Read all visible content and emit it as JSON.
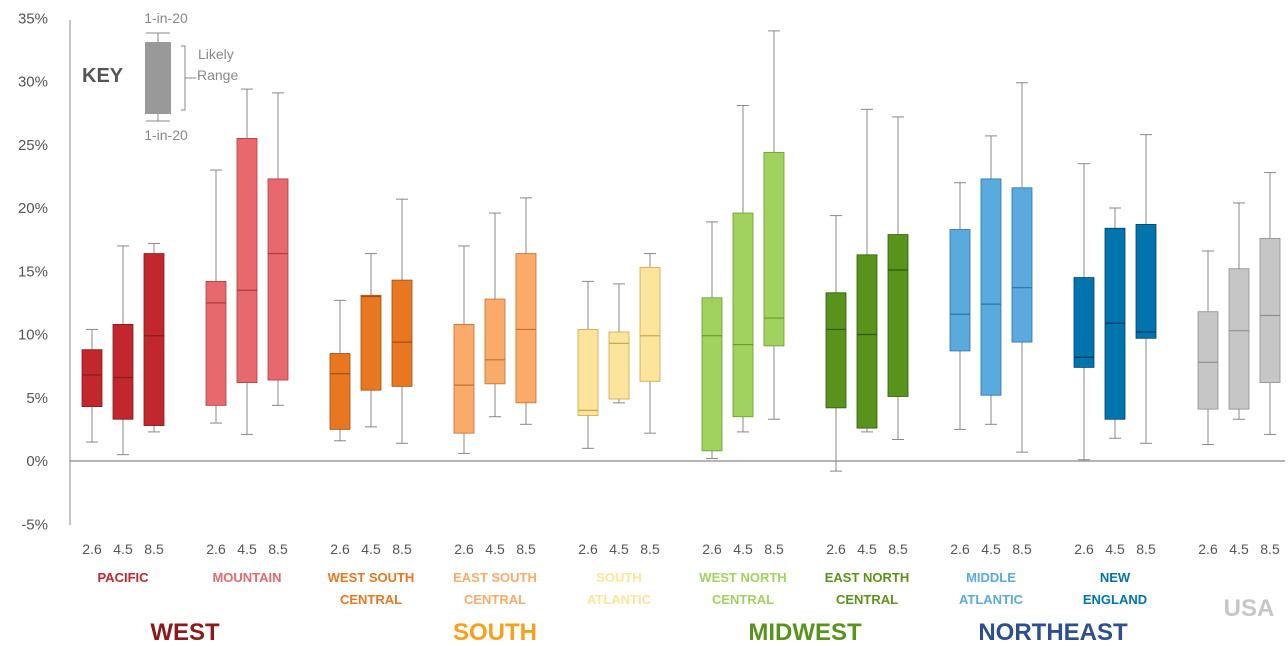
{
  "chart_data": {
    "type": "box",
    "ylim": [
      -5,
      35
    ],
    "yticks": [
      -5,
      0,
      5,
      10,
      15,
      20,
      25,
      30,
      35
    ],
    "ytick_labels": [
      "-5%",
      "0%",
      "5%",
      "10%",
      "15%",
      "20%",
      "25%",
      "30%",
      "35%"
    ],
    "scenarios": [
      "2.6",
      "4.5",
      "8.5"
    ],
    "key": {
      "title": "KEY",
      "upper_label": "1-in-20",
      "lower_label": "1-in-20",
      "range_label_line1": "Likely",
      "range_label_line2": "Range"
    },
    "groups": [
      {
        "name_lines": [
          "PACIFIC"
        ],
        "color": "#c1272d",
        "median_color": "#8a1a1f",
        "boxes": [
          {
            "scenario": "2.6",
            "low": 1.5,
            "q1": 4.3,
            "median": 6.8,
            "q3": 8.8,
            "high": 10.4
          },
          {
            "scenario": "4.5",
            "low": 0.5,
            "q1": 3.3,
            "median": 6.6,
            "q3": 10.8,
            "high": 17.0
          },
          {
            "scenario": "8.5",
            "low": 2.3,
            "q1": 2.8,
            "median": 9.9,
            "q3": 16.4,
            "high": 17.2
          }
        ]
      },
      {
        "name_lines": [
          "MOUNTAIN"
        ],
        "color": "#e8696d",
        "median_color": "#b03a3f",
        "boxes": [
          {
            "scenario": "2.6",
            "low": 3.0,
            "q1": 4.4,
            "median": 12.5,
            "q3": 14.2,
            "high": 23.0
          },
          {
            "scenario": "4.5",
            "low": 2.1,
            "q1": 6.2,
            "median": 13.5,
            "q3": 25.5,
            "high": 29.4
          },
          {
            "scenario": "8.5",
            "low": 4.4,
            "q1": 6.4,
            "median": 16.4,
            "q3": 22.3,
            "high": 29.1
          }
        ]
      },
      {
        "name_lines": [
          "WEST SOUTH",
          "CENTRAL"
        ],
        "color": "#e87722",
        "median_color": "#a34f12",
        "boxes": [
          {
            "scenario": "2.6",
            "low": 1.6,
            "q1": 2.5,
            "median": 6.9,
            "q3": 8.5,
            "high": 12.7
          },
          {
            "scenario": "4.5",
            "low": 2.7,
            "q1": 5.6,
            "median": 13.0,
            "q3": 13.1,
            "high": 16.4
          },
          {
            "scenario": "8.5",
            "low": 1.4,
            "q1": 5.9,
            "median": 9.4,
            "q3": 14.3,
            "high": 20.7
          }
        ]
      },
      {
        "name_lines": [
          "EAST SOUTH",
          "CENTRAL"
        ],
        "color": "#fbaa6a",
        "median_color": "#c0702f",
        "boxes": [
          {
            "scenario": "2.6",
            "low": 0.6,
            "q1": 2.2,
            "median": 6.0,
            "q3": 10.8,
            "high": 17.0
          },
          {
            "scenario": "4.5",
            "low": 3.5,
            "q1": 6.1,
            "median": 8.0,
            "q3": 12.8,
            "high": 19.6
          },
          {
            "scenario": "8.5",
            "low": 2.9,
            "q1": 4.6,
            "median": 10.4,
            "q3": 16.4,
            "high": 20.8
          }
        ]
      },
      {
        "name_lines": [
          "SOUTH",
          "ATLANTIC"
        ],
        "color": "#fde49c",
        "median_color": "#c9a94a",
        "boxes": [
          {
            "scenario": "2.6",
            "low": 1.0,
            "q1": 3.6,
            "median": 4.0,
            "q3": 10.4,
            "high": 14.2
          },
          {
            "scenario": "4.5",
            "low": 4.6,
            "q1": 4.9,
            "median": 9.3,
            "q3": 10.2,
            "high": 14.0
          },
          {
            "scenario": "8.5",
            "low": 2.2,
            "q1": 6.3,
            "median": 9.9,
            "q3": 15.3,
            "high": 16.4
          }
        ]
      },
      {
        "name_lines": [
          "WEST NORTH",
          "CENTRAL"
        ],
        "color": "#a2d25e",
        "median_color": "#6a9a2c",
        "boxes": [
          {
            "scenario": "2.6",
            "low": 0.2,
            "q1": 0.8,
            "median": 9.9,
            "q3": 12.9,
            "high": 18.9
          },
          {
            "scenario": "4.5",
            "low": 2.3,
            "q1": 3.5,
            "median": 9.2,
            "q3": 19.6,
            "high": 28.1
          },
          {
            "scenario": "8.5",
            "low": 3.3,
            "q1": 9.1,
            "median": 11.3,
            "q3": 24.4,
            "high": 34.0
          }
        ]
      },
      {
        "name_lines": [
          "EAST NORTH",
          "CENTRAL"
        ],
        "color": "#5a931c",
        "median_color": "#2f5a08",
        "boxes": [
          {
            "scenario": "2.6",
            "low": -0.8,
            "q1": 4.2,
            "median": 10.4,
            "q3": 13.3,
            "high": 19.4
          },
          {
            "scenario": "4.5",
            "low": 2.3,
            "q1": 2.6,
            "median": 10.0,
            "q3": 16.3,
            "high": 27.8
          },
          {
            "scenario": "8.5",
            "low": 1.7,
            "q1": 5.1,
            "median": 15.1,
            "q3": 17.9,
            "high": 27.2
          }
        ]
      },
      {
        "name_lines": [
          "MIDDLE",
          "ATLANTIC"
        ],
        "color": "#5aaadd",
        "median_color": "#2a73a6",
        "boxes": [
          {
            "scenario": "2.6",
            "low": 2.5,
            "q1": 8.7,
            "median": 11.6,
            "q3": 18.3,
            "high": 22.0
          },
          {
            "scenario": "4.5",
            "low": 2.9,
            "q1": 5.2,
            "median": 12.4,
            "q3": 22.3,
            "high": 25.7
          },
          {
            "scenario": "8.5",
            "low": 0.7,
            "q1": 9.4,
            "median": 13.7,
            "q3": 21.6,
            "high": 29.9
          }
        ]
      },
      {
        "name_lines": [
          "NEW",
          "ENGLAND"
        ],
        "color": "#0074ad",
        "median_color": "#003f63",
        "boxes": [
          {
            "scenario": "2.6",
            "low": 0.1,
            "q1": 7.4,
            "median": 8.2,
            "q3": 14.5,
            "high": 23.5
          },
          {
            "scenario": "4.5",
            "low": 1.8,
            "q1": 3.3,
            "median": 10.9,
            "q3": 18.4,
            "high": 20.0
          },
          {
            "scenario": "8.5",
            "low": 1.4,
            "q1": 9.7,
            "median": 10.2,
            "q3": 18.7,
            "high": 25.8
          }
        ]
      },
      {
        "name_lines": [
          "USA"
        ],
        "color": "#c6c6c6",
        "median_color": "#8e8e8e",
        "boxes": [
          {
            "scenario": "2.6",
            "low": 1.3,
            "q1": 4.1,
            "median": 7.8,
            "q3": 11.8,
            "high": 16.6
          },
          {
            "scenario": "4.5",
            "low": 3.3,
            "q1": 4.1,
            "median": 10.3,
            "q3": 15.2,
            "high": 20.4
          },
          {
            "scenario": "8.5",
            "low": 2.1,
            "q1": 6.2,
            "median": 11.5,
            "q3": 17.6,
            "high": 22.8
          }
        ]
      }
    ],
    "regions": [
      {
        "name": "WEST",
        "color": "#8b1a1a"
      },
      {
        "name": "SOUTH",
        "color": "#f7a11a"
      },
      {
        "name": "MIDWEST",
        "color": "#5a931c"
      },
      {
        "name": "NORTHEAST",
        "color": "#2e4f8f"
      }
    ],
    "grid": false,
    "legend": "top-left key"
  }
}
